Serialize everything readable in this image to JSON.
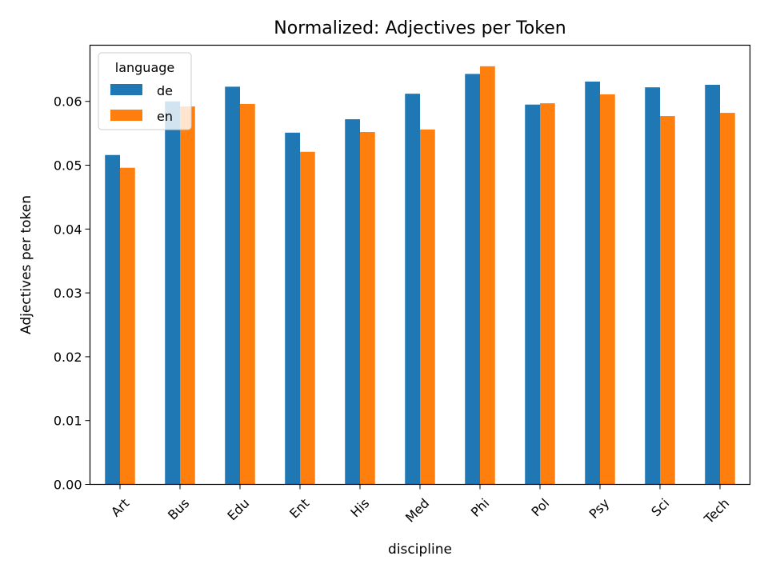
{
  "chart_data": {
    "type": "bar",
    "title": "Normalized: Adjectives per Token",
    "xlabel": "discipline",
    "ylabel": "Adjectives per token",
    "categories": [
      "Art",
      "Bus",
      "Edu",
      "Ent",
      "His",
      "Med",
      "Phi",
      "Pol",
      "Psy",
      "Sci",
      "Tech"
    ],
    "series": [
      {
        "name": "de",
        "color": "#1f77b4",
        "values": [
          0.0516,
          0.06,
          0.0623,
          0.0551,
          0.0572,
          0.0612,
          0.0643,
          0.0595,
          0.0631,
          0.0622,
          0.0626
        ]
      },
      {
        "name": "en",
        "color": "#ff7f0e",
        "values": [
          0.0496,
          0.0592,
          0.0596,
          0.0521,
          0.0552,
          0.0556,
          0.0655,
          0.0597,
          0.0611,
          0.0577,
          0.0582
        ]
      }
    ],
    "ylim": [
      0,
      0.0688
    ],
    "yticks": [
      "0.00",
      "0.01",
      "0.02",
      "0.03",
      "0.04",
      "0.05",
      "0.06"
    ],
    "legend": {
      "title": "language",
      "location": "top-left"
    },
    "grid": false
  }
}
